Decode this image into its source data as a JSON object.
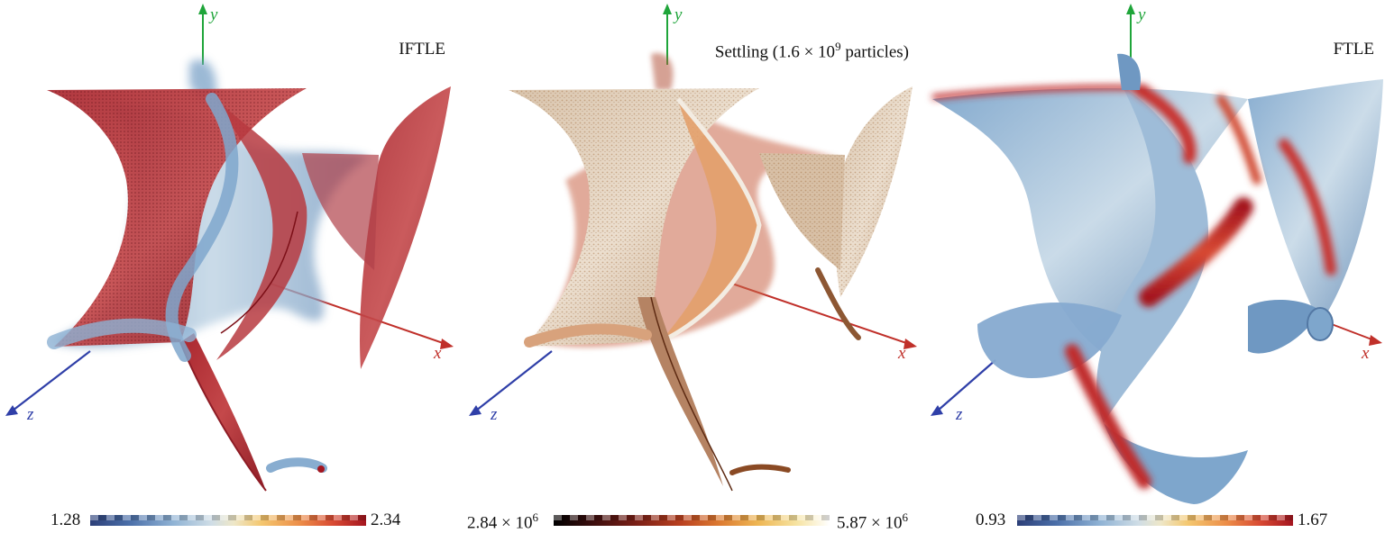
{
  "panels": [
    {
      "title": "IFTLE",
      "axes": {
        "x": "x",
        "y": "y",
        "z": "z"
      },
      "colorbar": {
        "min": "1.28",
        "max": "2.34",
        "colormap": "cool-warm",
        "colors": [
          "#2c3f78",
          "#8fb2d4",
          "#eee7c8",
          "#ec8d48",
          "#a4151f"
        ]
      }
    },
    {
      "title": "Settling (1.6 × 10",
      "title_exponent": "9",
      "title_suffix": " particles)",
      "axes": {
        "x": "x",
        "y": "y",
        "z": "z"
      },
      "colorbar": {
        "min": "2.84 × 10",
        "min_exponent": "6",
        "max": "5.87 × 10",
        "max_exponent": "6",
        "colormap": "black-body",
        "colors": [
          "#000000",
          "#7a1f16",
          "#dc7a31",
          "#f6e3a1",
          "#ffffff"
        ]
      }
    },
    {
      "title": "FTLE",
      "axes": {
        "x": "x",
        "y": "y",
        "z": "z"
      },
      "colorbar": {
        "min": "0.93",
        "max": "1.67",
        "colormap": "cool-warm",
        "colors": [
          "#2c3f78",
          "#8fb2d4",
          "#eee7c8",
          "#ec8d48",
          "#a4151f"
        ]
      }
    }
  ],
  "axis_colors": {
    "x": "#c0302a",
    "y": "#1fa53a",
    "z": "#2f3fa8"
  }
}
